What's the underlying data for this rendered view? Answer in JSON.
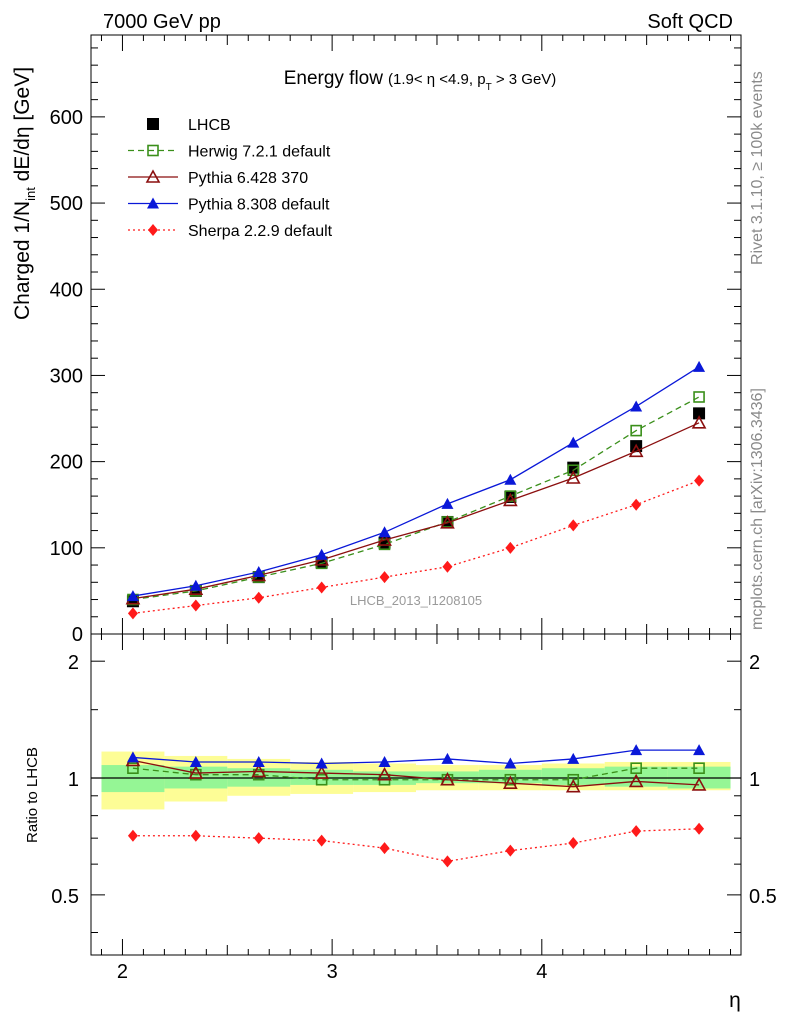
{
  "header": {
    "left": "7000 GeV pp",
    "right": "Soft QCD"
  },
  "side_labels": {
    "rivet": "Rivet 3.1.10, ≥ 100k events",
    "mcplots": "mcplots.cern.ch [arXiv:1306.3436]"
  },
  "watermark": "LHCB_2013_I1208105",
  "chart_data": [
    {
      "type": "line",
      "title": "Energy flow",
      "title_cut_parts": [
        "(1.9< η <4.9, p",
        "T",
        " > 3 GeV)"
      ],
      "ylabel_parts": [
        "Charged 1/N",
        "int",
        " dE/dη [GeV]"
      ],
      "xlim": [
        1.85,
        4.95
      ],
      "ylim": [
        0,
        695
      ],
      "y_ticks": [
        0,
        100,
        200,
        300,
        400,
        500,
        600
      ],
      "y_tick_labels": [
        "0",
        "100",
        "200",
        "300",
        "400",
        "500",
        "600"
      ],
      "legend_position": "top-left",
      "x": [
        2.05,
        2.35,
        2.65,
        2.95,
        3.25,
        3.55,
        3.85,
        4.15,
        4.45,
        4.75
      ],
      "series": [
        {
          "name": "LHCB",
          "color": "#000000",
          "marker": "square-filled",
          "line": "none",
          "values": [
            38,
            50,
            66,
            83,
            106,
            130,
            159,
            193,
            218,
            256
          ]
        },
        {
          "name": "Herwig 7.2.1 default",
          "color": "#3a8f1a",
          "marker": "square-open",
          "line": "dashed",
          "values": [
            40,
            50,
            66,
            82,
            104,
            130,
            160,
            190,
            236,
            275
          ]
        },
        {
          "name": "Pythia 6.428 370",
          "color": "#8b0f0f",
          "marker": "triangle-open",
          "line": "solid",
          "values": [
            41,
            52,
            68,
            86,
            109,
            129,
            155,
            181,
            212,
            245
          ]
        },
        {
          "name": "Pythia 8.308 default",
          "color": "#0a18d8",
          "marker": "triangle-filled",
          "line": "solid",
          "values": [
            44,
            56,
            72,
            92,
            118,
            151,
            179,
            222,
            264,
            310
          ]
        },
        {
          "name": "Sherpa 2.2.9 default",
          "color": "#ff1a1a",
          "marker": "diamond-filled",
          "line": "dotted",
          "values": [
            24,
            33,
            42,
            54,
            66,
            78,
            100,
            126,
            150,
            178
          ]
        }
      ]
    },
    {
      "type": "line",
      "ylabel": "Ratio to LHCB",
      "xlabel": "η",
      "xlim": [
        1.85,
        4.95
      ],
      "ylim": [
        0.35,
        2.35
      ],
      "y_ticks": [
        0.5,
        1,
        2
      ],
      "y_tick_labels": [
        "0.5",
        "1",
        "2"
      ],
      "x_ticks": [
        2,
        3,
        4
      ],
      "x_tick_labels": [
        "2",
        "3",
        "4"
      ],
      "bin_edges": [
        1.9,
        2.2,
        2.5,
        2.8,
        3.1,
        3.4,
        3.7,
        4.0,
        4.3,
        4.6,
        4.9
      ],
      "band_inner_lo": [
        0.92,
        0.94,
        0.95,
        0.96,
        0.96,
        0.97,
        0.97,
        0.96,
        0.95,
        0.94
      ],
      "band_inner_hi": [
        1.08,
        1.07,
        1.06,
        1.05,
        1.04,
        1.04,
        1.05,
        1.06,
        1.07,
        1.07
      ],
      "band_outer_lo": [
        0.83,
        0.87,
        0.9,
        0.91,
        0.92,
        0.93,
        0.93,
        0.93,
        0.93,
        0.93
      ],
      "band_outer_hi": [
        1.17,
        1.14,
        1.12,
        1.1,
        1.09,
        1.08,
        1.08,
        1.09,
        1.1,
        1.1
      ],
      "x": [
        2.05,
        2.35,
        2.65,
        2.95,
        3.25,
        3.55,
        3.85,
        4.15,
        4.45,
        4.75
      ],
      "series": [
        {
          "name": "Herwig 7.2.1 default",
          "values": [
            1.06,
            1.02,
            1.02,
            0.99,
            0.99,
            0.99,
            0.99,
            0.99,
            1.06,
            1.06
          ]
        },
        {
          "name": "Pythia 6.428 370",
          "values": [
            1.11,
            1.03,
            1.04,
            1.03,
            1.02,
            0.99,
            0.97,
            0.95,
            0.98,
            0.96
          ]
        },
        {
          "name": "Pythia 8.308 default",
          "values": [
            1.13,
            1.1,
            1.1,
            1.09,
            1.1,
            1.12,
            1.09,
            1.12,
            1.18,
            1.18
          ]
        },
        {
          "name": "Sherpa 2.2.9 default",
          "values": [
            0.71,
            0.71,
            0.7,
            0.69,
            0.66,
            0.61,
            0.65,
            0.68,
            0.73,
            0.74
          ]
        }
      ]
    }
  ]
}
